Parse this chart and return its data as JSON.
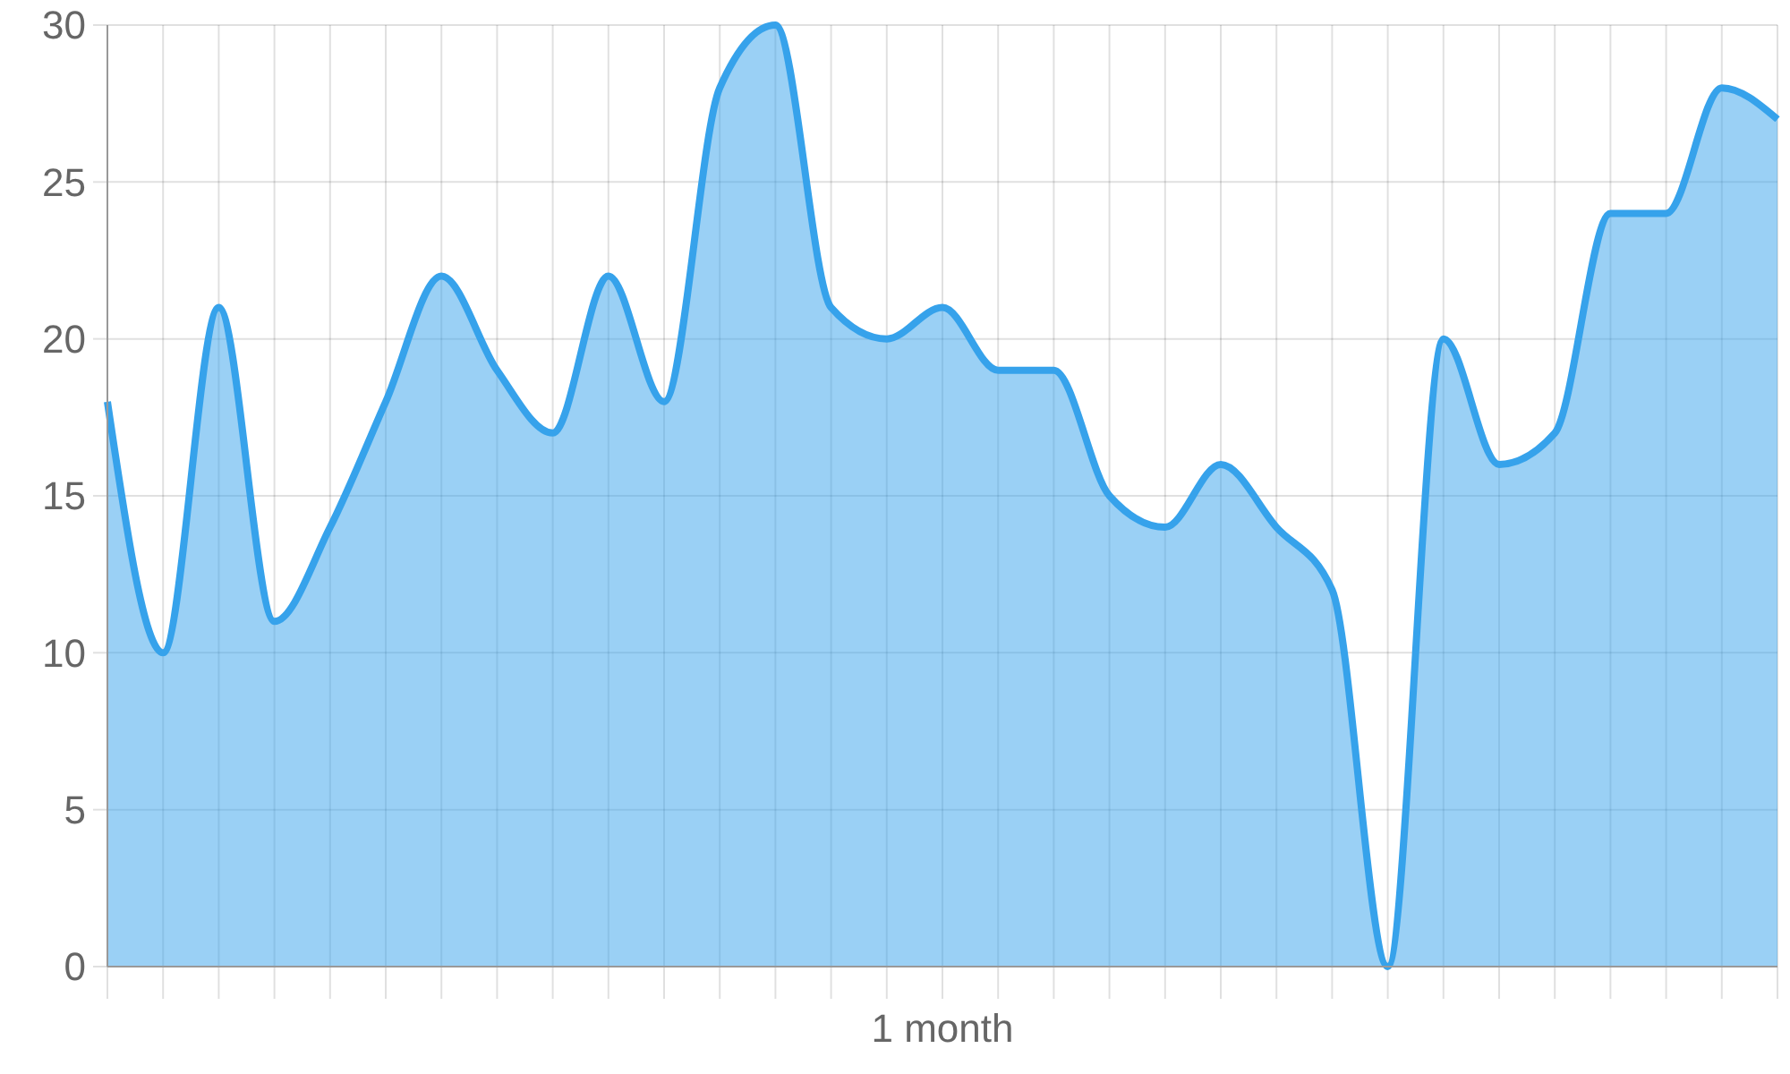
{
  "chart_data": {
    "type": "area",
    "xlabel": "1 month",
    "categories": [
      null,
      null,
      null,
      null,
      null,
      null,
      null,
      null,
      null,
      null,
      null,
      null,
      null,
      null,
      null,
      null,
      null,
      null,
      null,
      null,
      null,
      null,
      null,
      null,
      null,
      null,
      null,
      null,
      null,
      null,
      null
    ],
    "series": [
      {
        "color": "#36a2eb",
        "values": [
          18,
          10,
          21,
          11,
          14,
          18,
          22,
          19,
          17,
          22,
          18,
          28,
          30,
          21,
          20,
          21,
          19,
          19,
          15,
          14,
          16,
          14,
          12,
          0,
          20,
          16,
          17,
          24,
          24,
          28,
          27
        ]
      }
    ],
    "ylim": [
      0,
      30
    ],
    "yticks": [
      0,
      5,
      10,
      15,
      20,
      25,
      30
    ],
    "grid": true,
    "tick_labels": "y",
    "marker": "none",
    "line_style": "solid"
  }
}
